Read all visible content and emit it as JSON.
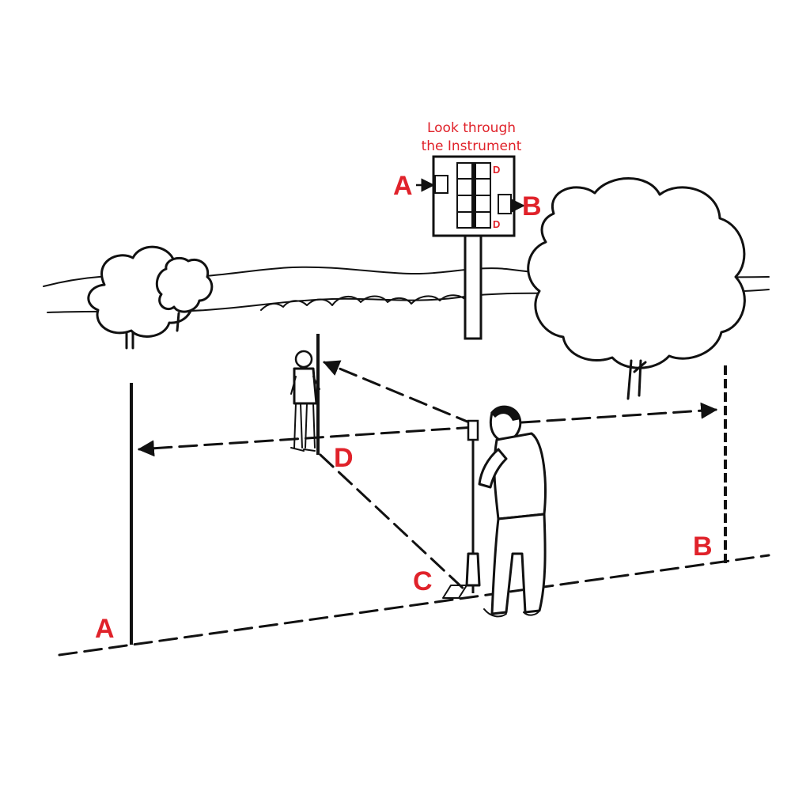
{
  "caption": {
    "line1": "Look through",
    "line2": "the Instrument"
  },
  "inset_labels": {
    "left": "A",
    "right": "B",
    "mirror_top": "D",
    "mirror_bottom": "D"
  },
  "field_labels": {
    "point_a": "A",
    "point_b": "B",
    "point_c": "C",
    "point_d": "D"
  },
  "colors": {
    "label_red": "#e0222a",
    "ink": "#111111"
  }
}
